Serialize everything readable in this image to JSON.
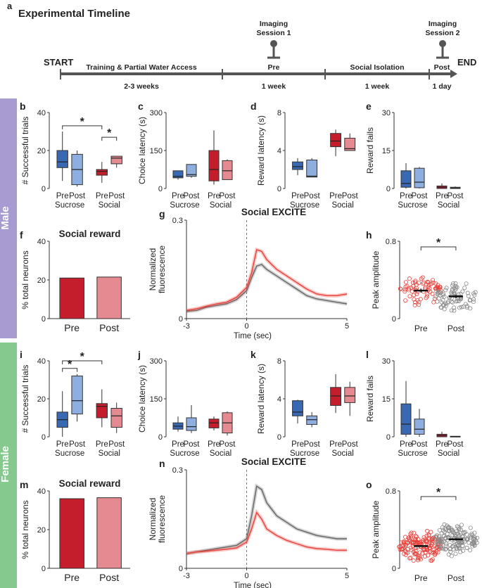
{
  "timeline": {
    "panel_letter": "a",
    "title": "Experimental Timeline",
    "start": "START",
    "end": "END",
    "imaging1": [
      "Imaging",
      "Session 1"
    ],
    "imaging2": [
      "Imaging",
      "Session 2"
    ],
    "phases": [
      {
        "above": "Training & Partial Water Access",
        "below": "2-3 weeks"
      },
      {
        "above": "Pre",
        "below": "1 week"
      },
      {
        "above": "Social Isolation",
        "below": "1 week"
      },
      {
        "above": "Post",
        "below": "1 day"
      }
    ]
  },
  "side_labels": {
    "male": "Male",
    "female": "Female"
  },
  "colors": {
    "sucrose_pre": "#3a69b4",
    "sucrose_post": "#8eaee0",
    "social_pre": "#c41e2c",
    "social_post": "#e58a90",
    "male_band": "#a89bd2",
    "female_band": "#86c98e",
    "excite_pre": "#e8413a",
    "excite_post": "#666666"
  },
  "chart_data": [
    {
      "letter": "b",
      "type": "box",
      "ylabel": "# Successful trials",
      "ylim": [
        0,
        40
      ],
      "ticks": [
        0,
        20,
        40
      ],
      "group_labels": [
        "Sucrose",
        "Social"
      ],
      "tick_labels": [
        "Pre",
        "Post",
        "Pre",
        "Post"
      ],
      "boxes": [
        {
          "name": "Sucrose Pre",
          "whislo": 4,
          "q1": 11,
          "med": 14,
          "q3": 20,
          "whishi": 30
        },
        {
          "name": "Sucrose Post",
          "whislo": 1,
          "q1": 2,
          "med": 10,
          "q3": 18,
          "whishi": 20
        },
        {
          "name": "Social Pre",
          "whislo": 3,
          "q1": 7,
          "med": 9,
          "q3": 10,
          "whishi": 14
        },
        {
          "name": "Social Post",
          "whislo": 11,
          "q1": 13,
          "med": 16,
          "q3": 17,
          "whishi": 17
        }
      ],
      "significance": [
        {
          "from": 0,
          "to": 2,
          "value": 33,
          "label": "*"
        },
        {
          "from": 2,
          "to": 3,
          "value": 27,
          "label": "*"
        }
      ]
    },
    {
      "letter": "c",
      "type": "box",
      "ylabel": "Choice latency (s)",
      "ylim": [
        0,
        300
      ],
      "ticks": [
        0,
        150,
        300
      ],
      "group_labels": [
        "Sucrose",
        "Social"
      ],
      "tick_labels": [
        "Pre",
        "Post",
        "Pre",
        "Post"
      ],
      "boxes": [
        {
          "name": "Sucrose Pre",
          "whislo": 35,
          "q1": 42,
          "med": 48,
          "q3": 70,
          "whishi": 70
        },
        {
          "name": "Sucrose Post",
          "whislo": 42,
          "q1": 48,
          "med": 55,
          "q3": 95,
          "whishi": 95
        },
        {
          "name": "Social Pre",
          "whislo": 15,
          "q1": 30,
          "med": 75,
          "q3": 150,
          "whishi": 230
        },
        {
          "name": "Social Post",
          "whislo": 35,
          "q1": 35,
          "med": 70,
          "q3": 110,
          "whishi": 115
        }
      ],
      "significance": []
    },
    {
      "letter": "d",
      "type": "box",
      "ylabel": "Reward latency (s)",
      "ylim": [
        0,
        8
      ],
      "ticks": [
        0,
        4,
        8
      ],
      "group_labels": [
        "Sucrose",
        "Social"
      ],
      "tick_labels": [
        "Pre",
        "Post",
        "Pre",
        "Post"
      ],
      "boxes": [
        {
          "name": "Sucrose Pre",
          "whislo": 1.4,
          "q1": 2.0,
          "med": 2.3,
          "q3": 2.8,
          "whishi": 3.2
        },
        {
          "name": "Sucrose Post",
          "whislo": 1.2,
          "q1": 1.2,
          "med": 1.3,
          "q3": 3.0,
          "whishi": 3.2
        },
        {
          "name": "Social Pre",
          "whislo": 3.4,
          "q1": 4.4,
          "med": 5.0,
          "q3": 5.8,
          "whishi": 6.2
        },
        {
          "name": "Social Post",
          "whislo": 4.0,
          "q1": 4.0,
          "med": 4.2,
          "q3": 5.3,
          "whishi": 5.8
        }
      ],
      "significance": []
    },
    {
      "letter": "e",
      "type": "box",
      "ylabel": "Reward fails",
      "ylim": [
        0,
        30
      ],
      "ticks": [
        0,
        15,
        30
      ],
      "group_labels": [
        "Sucrose",
        "Social"
      ],
      "tick_labels": [
        "Pre",
        "Post",
        "Pre",
        "Post"
      ],
      "boxes": [
        {
          "name": "Sucrose Pre",
          "whislo": 0,
          "q1": 0.5,
          "med": 2,
          "q3": 7,
          "whishi": 10
        },
        {
          "name": "Sucrose Post",
          "whislo": 0,
          "q1": 0.3,
          "med": 2.5,
          "q3": 8,
          "whishi": 8.5
        },
        {
          "name": "Social Pre",
          "whislo": 0,
          "q1": 0,
          "med": 0.5,
          "q3": 1,
          "whishi": 2
        },
        {
          "name": "Social Post",
          "whislo": 0,
          "q1": 0,
          "med": 0.2,
          "q3": 0.5,
          "whishi": 0.8
        }
      ],
      "significance": []
    },
    {
      "letter": "f",
      "type": "bar",
      "title": "Social reward",
      "ylabel": "% total neurons",
      "ylim": [
        0,
        40
      ],
      "ticks": [
        0,
        20,
        40
      ],
      "categories": [
        "Pre",
        "Post"
      ],
      "values": [
        21,
        21.5
      ]
    },
    {
      "letter": "g",
      "type": "line",
      "title": "Social EXCITE",
      "ylabel": "Normalized fluorescence",
      "ylabel_lines": [
        "Normalized",
        "fluorescence"
      ],
      "xlabel": "Time (sec)",
      "xlim": [
        -3,
        5
      ],
      "ylim": [
        0,
        0.3
      ],
      "xticks": [
        -3,
        0,
        5
      ],
      "yticks": [
        0,
        0.3
      ],
      "series": [
        {
          "name": "Pre",
          "x": [
            -3,
            -2.5,
            -2,
            -1.5,
            -1,
            -0.5,
            0,
            0.25,
            0.5,
            0.75,
            1,
            1.5,
            2,
            2.5,
            3,
            3.5,
            4,
            4.5,
            5
          ],
          "y": [
            0.025,
            0.03,
            0.038,
            0.045,
            0.05,
            0.065,
            0.095,
            0.14,
            0.21,
            0.205,
            0.18,
            0.15,
            0.13,
            0.11,
            0.09,
            0.075,
            0.07,
            0.07,
            0.075
          ]
        },
        {
          "name": "Post",
          "x": [
            -3,
            -2.5,
            -2,
            -1.5,
            -1,
            -0.5,
            0,
            0.25,
            0.5,
            0.75,
            1,
            1.5,
            2,
            2.5,
            3,
            3.5,
            4,
            4.5,
            5
          ],
          "y": [
            0.022,
            0.025,
            0.035,
            0.04,
            0.045,
            0.058,
            0.085,
            0.125,
            0.16,
            0.165,
            0.15,
            0.13,
            0.11,
            0.09,
            0.07,
            0.06,
            0.055,
            0.05,
            0.045
          ]
        }
      ]
    },
    {
      "letter": "h",
      "type": "scatter",
      "ylabel": "Peak amplitude",
      "ylim": [
        0,
        0.8
      ],
      "ticks": [
        0,
        0.8
      ],
      "categories": [
        "Pre",
        "Post"
      ],
      "means": [
        0.29,
        0.23
      ],
      "sem": [
        0.02,
        0.015
      ],
      "n": [
        70,
        80
      ],
      "significance": [
        {
          "from": 0,
          "to": 1,
          "label": "*"
        }
      ]
    },
    {
      "letter": "i",
      "type": "box",
      "ylabel": "# Successful trials",
      "ylim": [
        0,
        40
      ],
      "ticks": [
        0,
        20,
        40
      ],
      "group_labels": [
        "Sucrose",
        "Social"
      ],
      "tick_labels": [
        "Pre",
        "Post",
        "Pre",
        "Post"
      ],
      "boxes": [
        {
          "name": "Sucrose Pre",
          "whislo": 0,
          "q1": 5,
          "med": 9,
          "q3": 13,
          "whishi": 24
        },
        {
          "name": "Sucrose Post",
          "whislo": 8,
          "q1": 12,
          "med": 19,
          "q3": 32,
          "whishi": 33
        },
        {
          "name": "Social Pre",
          "whislo": 5,
          "q1": 10,
          "med": 16,
          "q3": 17.5,
          "whishi": 25
        },
        {
          "name": "Social Post",
          "whislo": 2,
          "q1": 5,
          "med": 11,
          "q3": 15,
          "whishi": 18
        }
      ],
      "significance": [
        {
          "from": 0,
          "to": 1,
          "value": 36,
          "label": "*"
        },
        {
          "from": 0,
          "to": 2,
          "value": 40,
          "label": "*"
        }
      ]
    },
    {
      "letter": "j",
      "type": "box",
      "ylabel": "Choice latency (s)",
      "ylim": [
        0,
        300
      ],
      "ticks": [
        0,
        150,
        300
      ],
      "group_labels": [
        "Sucrose",
        "Social"
      ],
      "tick_labels": [
        "Pre",
        "Post",
        "Pre",
        "Post"
      ],
      "boxes": [
        {
          "name": "Sucrose Pre",
          "whislo": 20,
          "q1": 30,
          "med": 42,
          "q3": 55,
          "whishi": 80
        },
        {
          "name": "Sucrose Post",
          "whislo": 15,
          "q1": 25,
          "med": 40,
          "q3": 75,
          "whishi": 125
        },
        {
          "name": "Social Pre",
          "whislo": 25,
          "q1": 35,
          "med": 55,
          "q3": 70,
          "whishi": 80
        },
        {
          "name": "Social Post",
          "whislo": 5,
          "q1": 15,
          "med": 55,
          "q3": 95,
          "whishi": 100
        }
      ],
      "significance": []
    },
    {
      "letter": "k",
      "type": "box",
      "ylabel": "Reward latency (s)",
      "ylim": [
        0,
        8
      ],
      "ticks": [
        0,
        4,
        8
      ],
      "group_labels": [
        "Sucrose",
        "Social"
      ],
      "tick_labels": [
        "Pre",
        "Post",
        "Pre",
        "Post"
      ],
      "boxes": [
        {
          "name": "Sucrose Pre",
          "whislo": 1.4,
          "q1": 2.2,
          "med": 2.6,
          "q3": 3.8,
          "whishi": 3.9
        },
        {
          "name": "Sucrose Post",
          "whislo": 1.0,
          "q1": 1.3,
          "med": 1.8,
          "q3": 2.2,
          "whishi": 2.6
        },
        {
          "name": "Social Pre",
          "whislo": 2.5,
          "q1": 3.3,
          "med": 4.3,
          "q3": 5.2,
          "whishi": 6.6
        },
        {
          "name": "Social Post",
          "whislo": 2.2,
          "q1": 3.6,
          "med": 4.3,
          "q3": 5.2,
          "whishi": 5.8
        }
      ],
      "significance": []
    },
    {
      "letter": "l",
      "type": "box",
      "ylabel": "Reward fails",
      "ylim": [
        0,
        30
      ],
      "ticks": [
        0,
        15,
        30
      ],
      "group_labels": [
        "Sucrose",
        "Social"
      ],
      "tick_labels": [
        "Pre",
        "Post",
        "Pre",
        "Post"
      ],
      "boxes": [
        {
          "name": "Sucrose Pre",
          "whislo": 0,
          "q1": 1,
          "med": 5,
          "q3": 13,
          "whishi": 22
        },
        {
          "name": "Sucrose Post",
          "whislo": 0,
          "q1": 1,
          "med": 3,
          "q3": 7,
          "whishi": 11
        },
        {
          "name": "Social Pre",
          "whislo": 0,
          "q1": 0,
          "med": 0.5,
          "q3": 1,
          "whishi": 2
        },
        {
          "name": "Social Post",
          "whislo": 0,
          "q1": 0,
          "med": 0.1,
          "q3": 0.2,
          "whishi": 0.3
        }
      ],
      "significance": []
    },
    {
      "letter": "m",
      "type": "bar",
      "title": "Social reward",
      "ylabel": "% total neurons",
      "ylim": [
        0,
        40
      ],
      "ticks": [
        0,
        20,
        40
      ],
      "categories": [
        "Pre",
        "Post"
      ],
      "values": [
        36,
        36.5
      ]
    },
    {
      "letter": "n",
      "type": "line",
      "title": "Social EXCITE",
      "ylabel": "Normalized fluorescence",
      "ylabel_lines": [
        "Normalized",
        "fluorescence"
      ],
      "xlabel": "Time (sec)",
      "xlim": [
        -3,
        5
      ],
      "ylim": [
        0,
        0.3
      ],
      "xticks": [
        -3,
        0,
        5
      ],
      "yticks": [
        0,
        0.3
      ],
      "series": [
        {
          "name": "Pre",
          "x": [
            -3,
            -2.5,
            -2,
            -1.5,
            -1,
            -0.5,
            0,
            0.25,
            0.5,
            0.75,
            1,
            1.5,
            2,
            2.5,
            3,
            3.5,
            4,
            4.5,
            5
          ],
          "y": [
            0.045,
            0.05,
            0.052,
            0.055,
            0.058,
            0.062,
            0.08,
            0.12,
            0.17,
            0.15,
            0.12,
            0.1,
            0.085,
            0.075,
            0.065,
            0.06,
            0.058,
            0.055,
            0.055
          ]
        },
        {
          "name": "Post",
          "x": [
            -3,
            -2.5,
            -2,
            -1.5,
            -1,
            -0.5,
            0,
            0.25,
            0.5,
            0.75,
            1,
            1.5,
            2,
            2.5,
            3,
            3.5,
            4,
            4.5,
            5
          ],
          "y": [
            0.045,
            0.05,
            0.055,
            0.06,
            0.065,
            0.07,
            0.09,
            0.16,
            0.25,
            0.24,
            0.2,
            0.16,
            0.14,
            0.12,
            0.11,
            0.1,
            0.095,
            0.09,
            0.09
          ]
        }
      ]
    },
    {
      "letter": "o",
      "type": "scatter",
      "ylabel": "Peak amplitude",
      "ylim": [
        0,
        0.8
      ],
      "ticks": [
        0,
        0.8
      ],
      "categories": [
        "Pre",
        "Post"
      ],
      "means": [
        0.23,
        0.3
      ],
      "sem": [
        0.01,
        0.012
      ],
      "n": [
        150,
        150
      ],
      "significance": [
        {
          "from": 0,
          "to": 1,
          "label": "*"
        }
      ]
    }
  ]
}
